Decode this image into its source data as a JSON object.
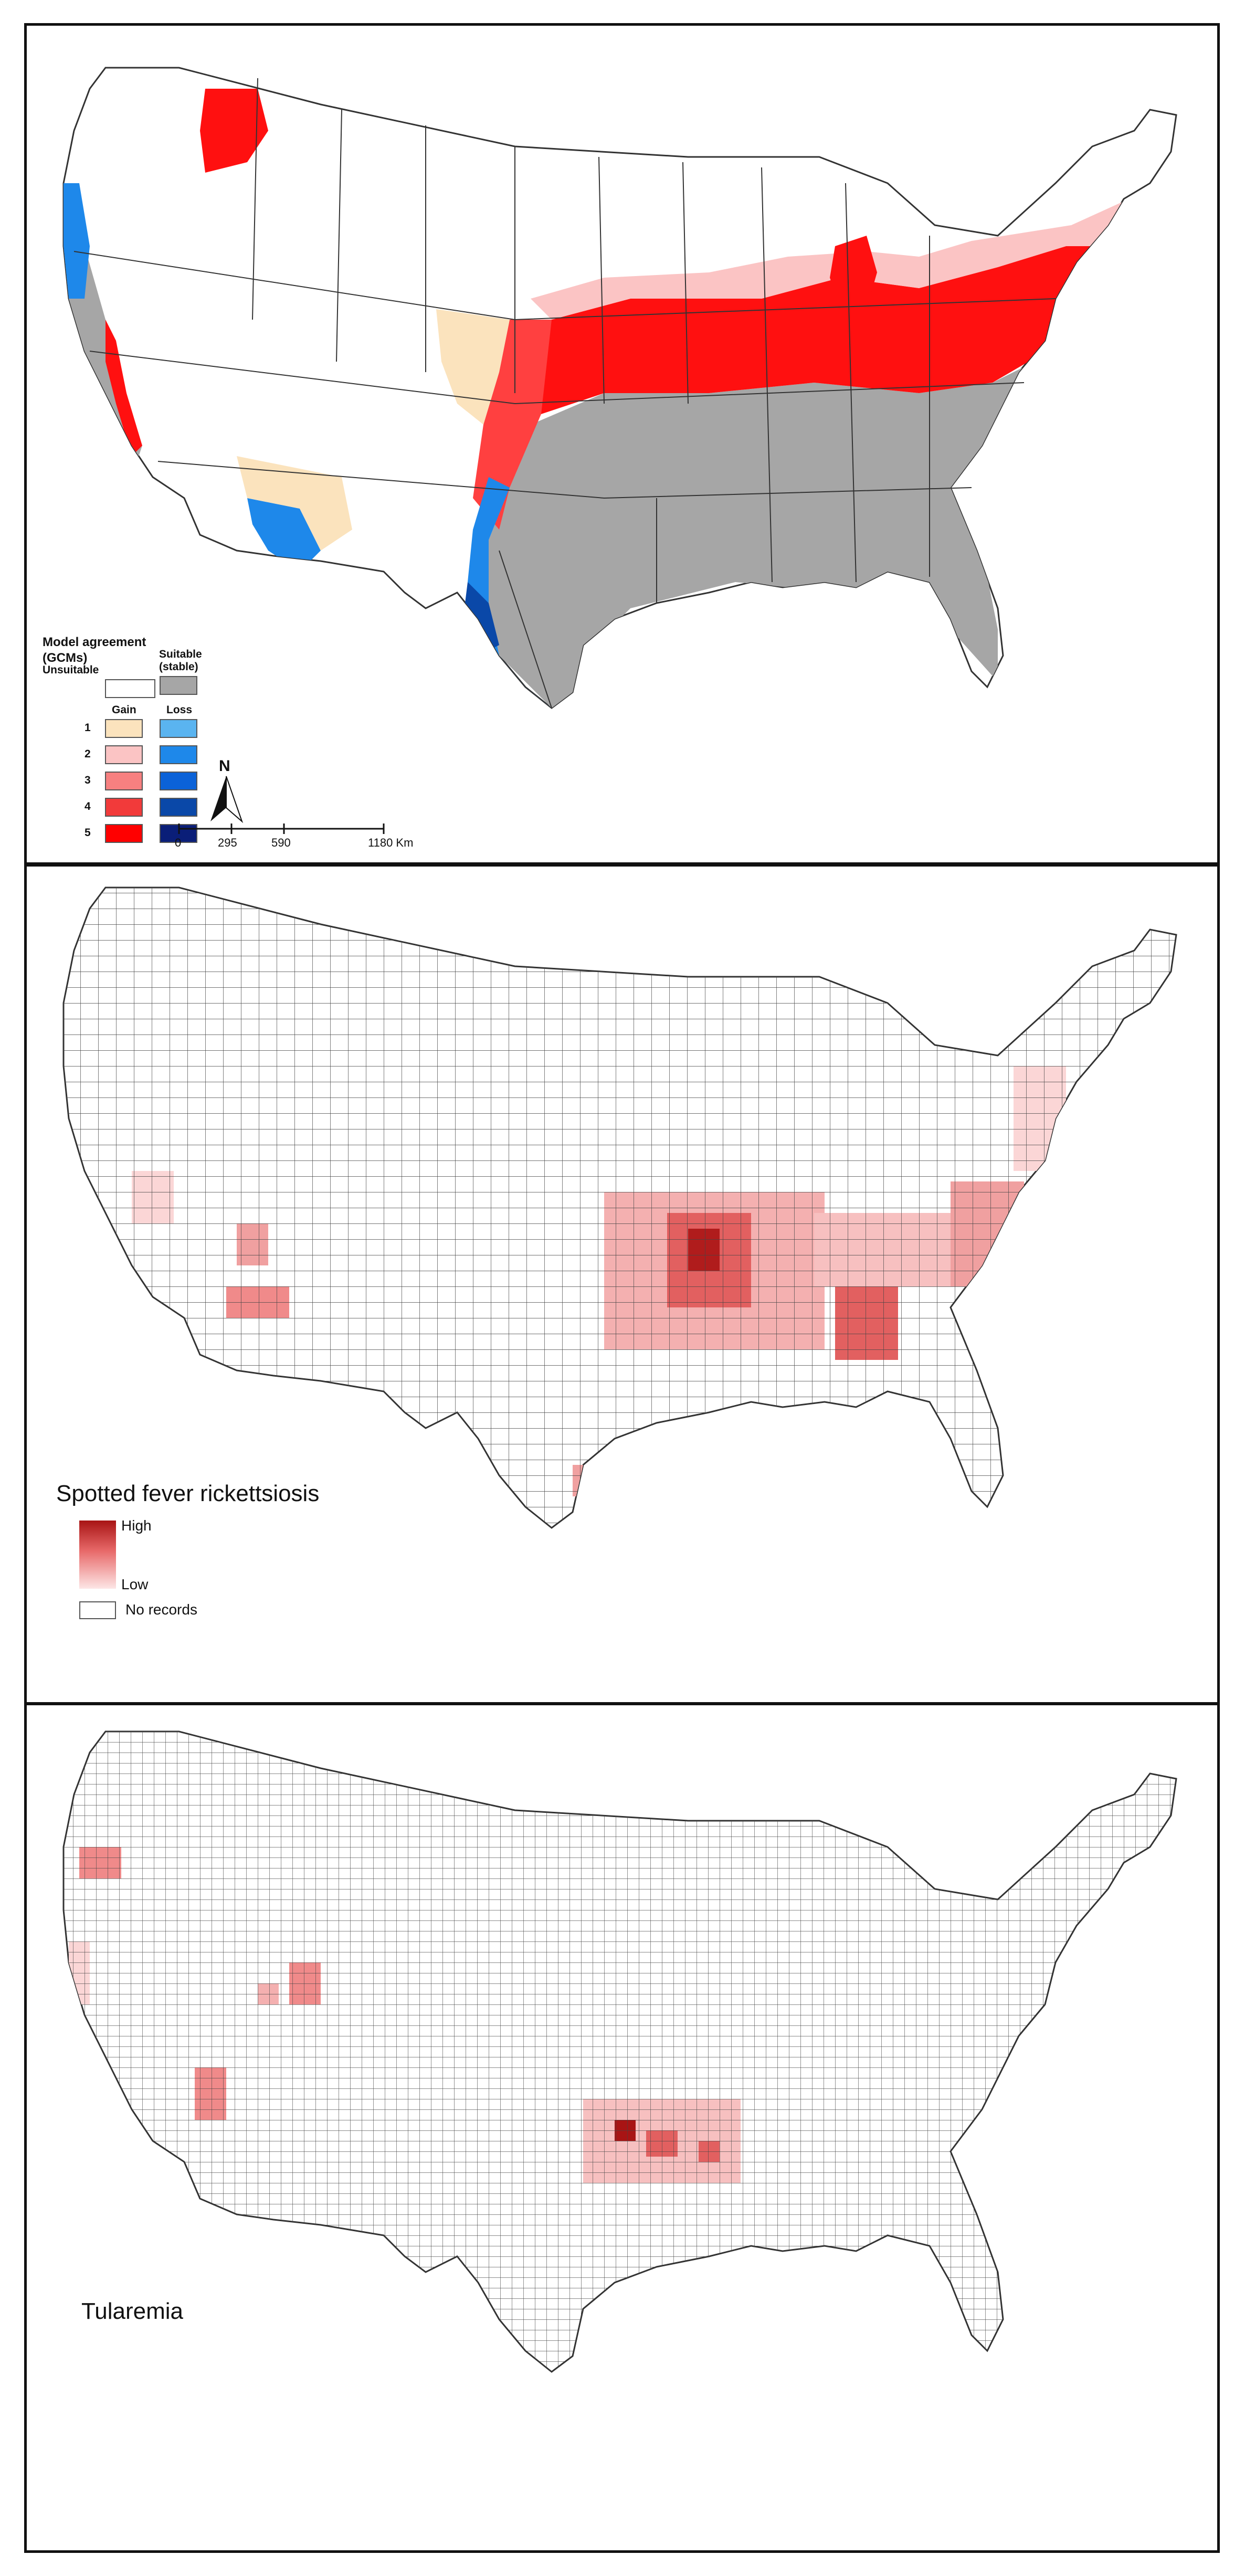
{
  "panel1": {
    "legend": {
      "title": "Model agreement (GCMs)",
      "unsuitable": "Unsuitable",
      "suitable": "Suitable (stable)",
      "gain": "Gain",
      "loss": "Loss",
      "levels": [
        "1",
        "2",
        "3",
        "4",
        "5"
      ],
      "gain_colors": [
        "#fbe3bd",
        "#fbc4c4",
        "#f78080",
        "#f23a3a",
        "#ff0000"
      ],
      "loss_colors": [
        "#5ab4f0",
        "#1e88ea",
        "#0b62d8",
        "#0a48a8",
        "#0a1e78"
      ],
      "unsuitable_color": "#ffffff",
      "suitable_color": "#a6a6a6"
    },
    "north": "N",
    "scale_labels": [
      "0",
      "295",
      "590",
      "1180 Km"
    ]
  },
  "panel2": {
    "title": "Spotted fever rickettsiosis",
    "legend": {
      "high": "High",
      "low": "Low",
      "no_records": "No records"
    }
  },
  "panel3": {
    "title": "Tularemia"
  }
}
